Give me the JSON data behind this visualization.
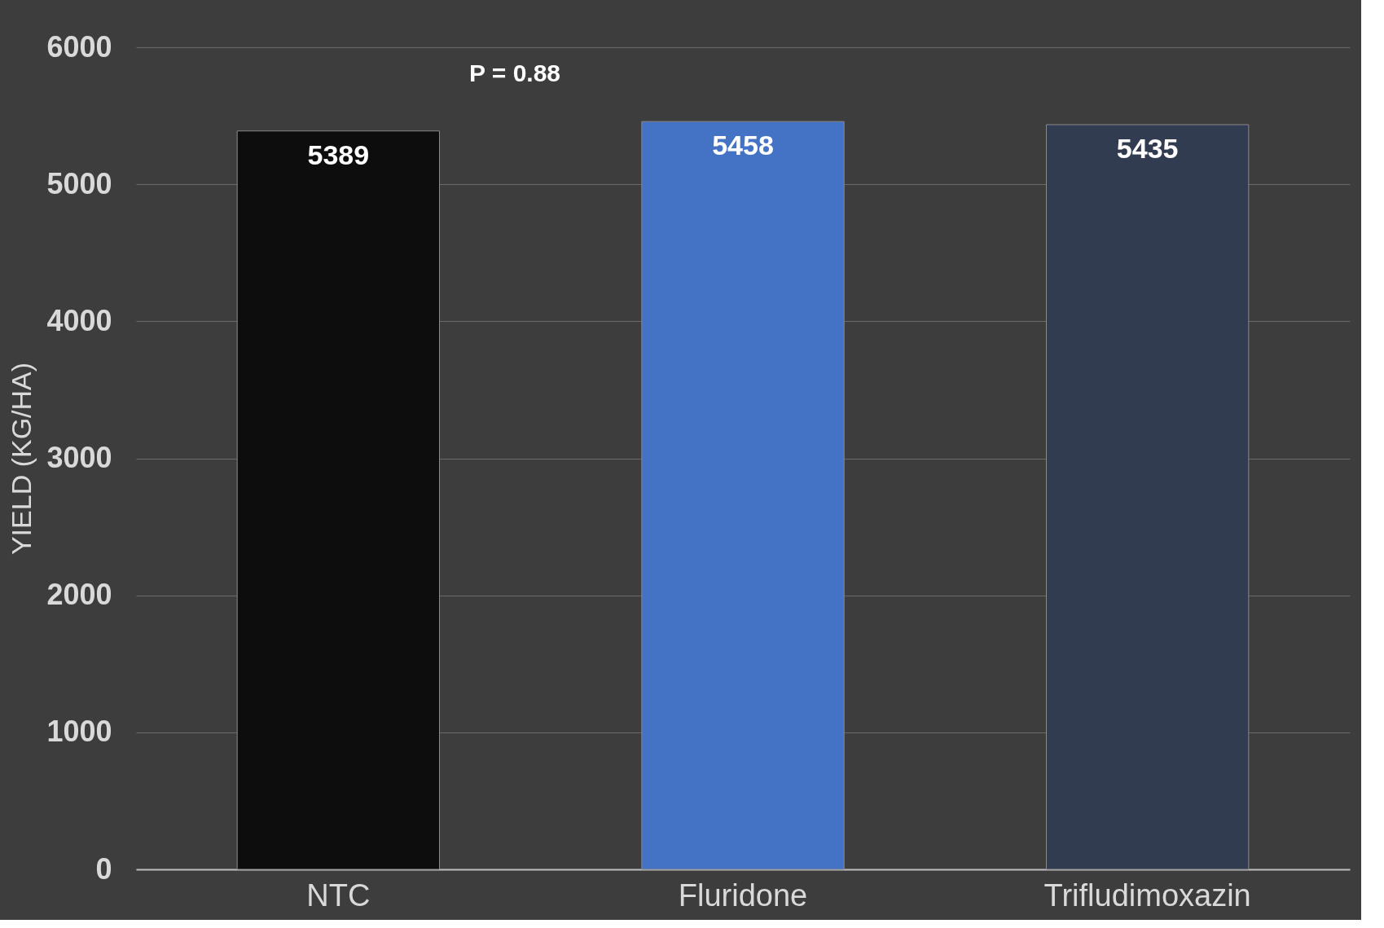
{
  "chart_data": {
    "type": "bar",
    "ylabel": "YIELD (KG/HA)",
    "categories": [
      "NTC",
      "Fluridone",
      "Trifludimoxazin"
    ],
    "values": [
      5389,
      5458,
      5435
    ],
    "colors": [
      "#0d0d0d",
      "#4472c4",
      "#323c50"
    ],
    "ylim": [
      0,
      6000
    ],
    "yticks": [
      0,
      1000,
      2000,
      3000,
      4000,
      5000,
      6000
    ],
    "grid": "y",
    "data_labels": true,
    "annotations": [
      "P = 0.88"
    ]
  }
}
